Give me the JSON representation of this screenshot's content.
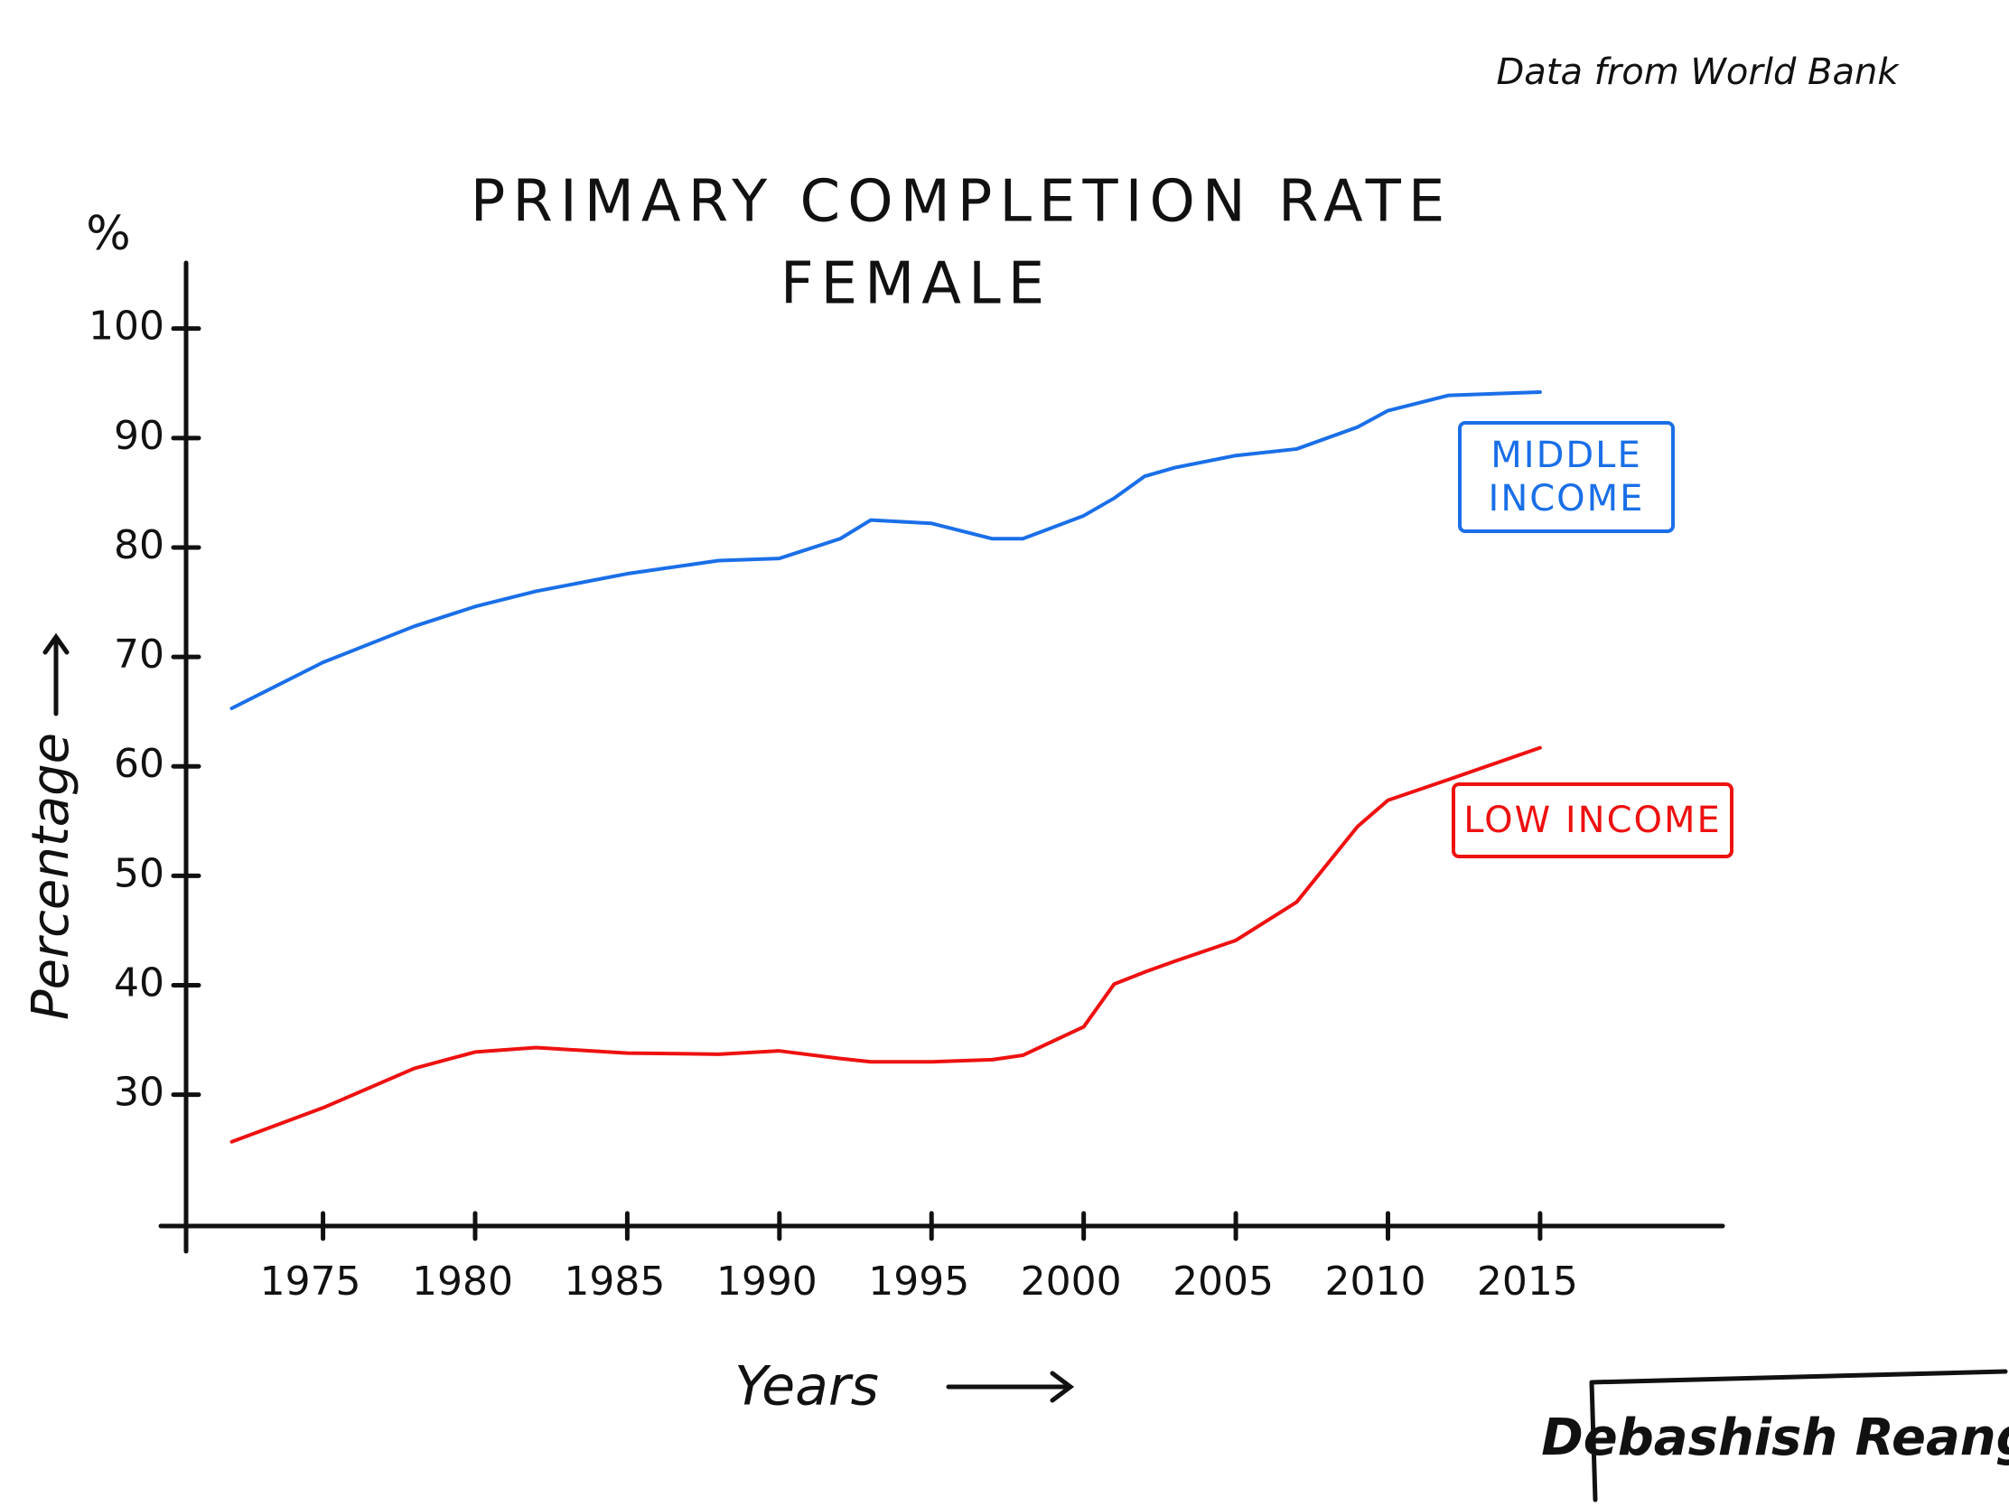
{
  "chart_data": {
    "type": "line",
    "title": "PRIMARY COMPLETION RATE",
    "subtitle": "FEMALE",
    "source": "Data from World Bank",
    "author": "Debashish Reang",
    "y_unit": "%",
    "y_label": "Percentage",
    "x_label": "Years",
    "x": [
      1972,
      1975,
      1978,
      1980,
      1982,
      1985,
      1988,
      1990,
      1992,
      1993,
      1995,
      1997,
      1998,
      2000,
      2001,
      2002,
      2003,
      2005,
      2007,
      2009,
      2010,
      2012,
      2015
    ],
    "series": [
      {
        "name": "MIDDLE INCOME",
        "color": "#1a6fe8",
        "values": [
          65.3,
          69.5,
          72.8,
          74.6,
          76,
          77.6,
          78.8,
          79,
          80.8,
          82.5,
          82.2,
          80.8,
          80.8,
          82.9,
          84.5,
          86.5,
          87.3,
          88.4,
          89,
          91,
          92.5,
          93.9,
          94.2
        ]
      },
      {
        "name": "LOW INCOME",
        "color": "#ee1111",
        "values": [
          25.7,
          28.8,
          32.4,
          33.9,
          34.3,
          33.8,
          33.7,
          34,
          33.3,
          33,
          33,
          33.2,
          33.6,
          36.2,
          40.1,
          41.2,
          42.2,
          44.1,
          47.6,
          54.5,
          56.9,
          58.8,
          61.7
        ]
      }
    ],
    "xlim": [
      1970.5,
      2021
    ],
    "xticks": [
      1975,
      1980,
      1985,
      1990,
      1995,
      2000,
      2005,
      2010,
      2015
    ],
    "ylim": [
      18,
      106
    ],
    "yticks": [
      30,
      40,
      50,
      60,
      70,
      80,
      90,
      100
    ],
    "grid": false
  }
}
